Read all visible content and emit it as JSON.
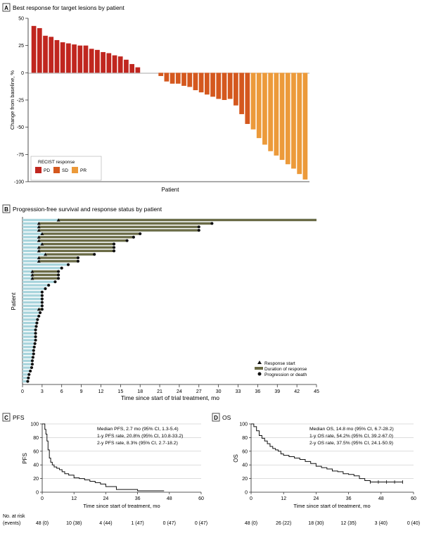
{
  "panelA": {
    "letter": "A",
    "title": "Best response for target lesions by patient",
    "ylabel": "Change from baseline, %",
    "xlabel": "Patient",
    "legend_title": "RECIST response",
    "legend": [
      {
        "key": "PD",
        "label": "PD",
        "color": "#c0261f"
      },
      {
        "key": "SD",
        "label": "SD",
        "color": "#d4581e"
      },
      {
        "key": "PR",
        "label": "PR",
        "color": "#ec9a3a"
      }
    ]
  },
  "panelB": {
    "letter": "B",
    "title": "Progression-free survival and response status by patient",
    "ylabel": "Patient",
    "xlabel": "Time since start of trial treatment, mo",
    "legend": {
      "response_start": "Response start",
      "duration": "Duration of response",
      "progression": "Progression or death"
    }
  },
  "panelC": {
    "letter": "C",
    "title": "PFS",
    "ylabel": "PFS",
    "xlabel": "Time since start of treatment, mo",
    "stats": [
      "Median PFS, 2.7 mo (95% CI, 1.3-5.4)",
      "1-y PFS rate, 20.8% (95% CI, 10.8-33.2)",
      "2-y PFS rate, 8.3% (95% CI, 2.7-18.2)"
    ],
    "at_risk_label1": "No. at risk",
    "at_risk_label2": "(events)",
    "at_risk": [
      "48 (0)",
      "10 (38)",
      "4 (44)",
      "1 (47)",
      "0 (47)",
      "0 (47)"
    ]
  },
  "panelD": {
    "letter": "D",
    "title": "OS",
    "ylabel": "OS",
    "xlabel": "Time since start of treatment, mo",
    "stats": [
      "Median OS, 14.8 mo (95% CI, 6.7-28.2)",
      "1-y OS rate, 54.2% (95% CI, 39.2-67.0)",
      "2-y OS rate, 37.5% (95% CI, 24.1-50.9)"
    ],
    "at_risk": [
      "48 (0)",
      "26 (22)",
      "18 (30)",
      "12 (35)",
      "3 (40)",
      "0 (40)"
    ]
  },
  "colors": {
    "pd": "#c0261f",
    "sd": "#d4581e",
    "pr": "#ec9a3a",
    "pfs_bar": "#a8d4dc",
    "duration": "#6b6b46",
    "marker": "#111111"
  },
  "chart_data": [
    {
      "type": "bar",
      "id": "waterfall",
      "ylim": [
        -100,
        50
      ],
      "yticks": [
        50,
        25,
        0,
        -25,
        -50,
        -75,
        -100
      ],
      "values": [
        43,
        41,
        34,
        33,
        30,
        28,
        27,
        26,
        25,
        25,
        22,
        21,
        19,
        18,
        16,
        15,
        12,
        8,
        5,
        0,
        0,
        0,
        -3,
        -8,
        -10,
        -10,
        -12,
        -13,
        -16,
        -18,
        -20,
        -22,
        -24,
        -25,
        -24,
        -30,
        -38,
        -47,
        -52,
        -60,
        -66,
        -72,
        -76,
        -80,
        -84,
        -88,
        -93,
        -98
      ],
      "response": [
        "PD",
        "PD",
        "PD",
        "PD",
        "PD",
        "PD",
        "PD",
        "PD",
        "PD",
        "PD",
        "PD",
        "PD",
        "PD",
        "PD",
        "PD",
        "PD",
        "PD",
        "PD",
        "PD",
        "",
        "",
        "",
        "SD",
        "SD",
        "SD",
        "SD",
        "SD",
        "SD",
        "SD",
        "SD",
        "SD",
        "SD",
        "SD",
        "SD",
        "SD",
        "SD",
        "SD",
        "SD",
        "PR",
        "PR",
        "PR",
        "PR",
        "PR",
        "PR",
        "PR",
        "PR",
        "PR",
        "PR"
      ]
    },
    {
      "type": "bar",
      "id": "swimmer",
      "xlim": [
        0,
        45
      ],
      "xticks": [
        0,
        3,
        6,
        9,
        12,
        15,
        18,
        21,
        24,
        27,
        30,
        33,
        36,
        39,
        42,
        45
      ],
      "pfs": [
        45,
        29,
        27,
        27,
        18,
        17,
        16,
        14,
        14,
        14,
        11,
        8.5,
        8.5,
        7,
        6,
        5.5,
        5.5,
        5.5,
        5,
        4,
        3.5,
        3,
        3,
        3,
        3,
        3,
        3,
        2.7,
        2.5,
        2.3,
        2.2,
        2.1,
        2,
        2,
        2,
        2,
        1.9,
        1.8,
        1.7,
        1.7,
        1.6,
        1.5,
        1.5,
        1.4,
        1.2,
        1.0,
        0.9,
        0.8
      ],
      "response_start": [
        5.5,
        2.5,
        2.5,
        2.5,
        3,
        2.5,
        2.5,
        3,
        2.5,
        2.5,
        3.5,
        2.5,
        2.5,
        null,
        null,
        1.5,
        1.5,
        1.5,
        null,
        null,
        null,
        null,
        null,
        null,
        null,
        null,
        2.5,
        null,
        null,
        null,
        null,
        null,
        null,
        null,
        null,
        null,
        null,
        null,
        null,
        null,
        null,
        null,
        null,
        null,
        null,
        null,
        null,
        null
      ],
      "progression": [
        false,
        true,
        true,
        true,
        true,
        true,
        true,
        true,
        true,
        true,
        true,
        true,
        true,
        true,
        true,
        true,
        true,
        true,
        true,
        true,
        true,
        true,
        true,
        true,
        true,
        true,
        true,
        true,
        true,
        true,
        true,
        true,
        true,
        true,
        true,
        true,
        true,
        true,
        true,
        true,
        true,
        true,
        true,
        true,
        true,
        true,
        true,
        true
      ]
    },
    {
      "type": "line",
      "id": "pfs_km",
      "xlim": [
        0,
        60
      ],
      "ylim": [
        0,
        100
      ],
      "xticks": [
        0,
        12,
        24,
        36,
        48,
        60
      ],
      "yticks": [
        0,
        20,
        40,
        60,
        80,
        100
      ],
      "x": [
        0,
        1,
        1.4,
        1.8,
        2.2,
        2.7,
        3.2,
        3.8,
        4.5,
        5.5,
        6.5,
        7.5,
        8.5,
        10,
        12,
        14,
        16,
        18,
        20,
        22,
        24,
        26,
        28,
        36,
        46
      ],
      "y": [
        100,
        92,
        85,
        75,
        62,
        50,
        44,
        40,
        37,
        35,
        33,
        30,
        27,
        25,
        21,
        20,
        18,
        16,
        14,
        12,
        8.3,
        8.3,
        4,
        2,
        2
      ]
    },
    {
      "type": "line",
      "id": "os_km",
      "xlim": [
        0,
        60
      ],
      "ylim": [
        0,
        100
      ],
      "xticks": [
        0,
        12,
        24,
        36,
        48,
        60
      ],
      "yticks": [
        0,
        20,
        40,
        60,
        80,
        100
      ],
      "x": [
        0,
        1,
        2,
        3,
        4,
        5,
        6,
        7,
        8,
        9,
        10,
        11,
        12,
        14,
        16,
        18,
        20,
        22,
        24,
        26,
        28,
        30,
        32,
        34,
        36,
        38,
        40,
        42,
        44,
        48,
        52,
        56
      ],
      "y": [
        100,
        96,
        90,
        83,
        79,
        75,
        71,
        67,
        64,
        62,
        60,
        56,
        54,
        52,
        50,
        48,
        45,
        42,
        38,
        36,
        34,
        31,
        30,
        27,
        26,
        24,
        20,
        17,
        15,
        15,
        15,
        15
      ]
    }
  ]
}
